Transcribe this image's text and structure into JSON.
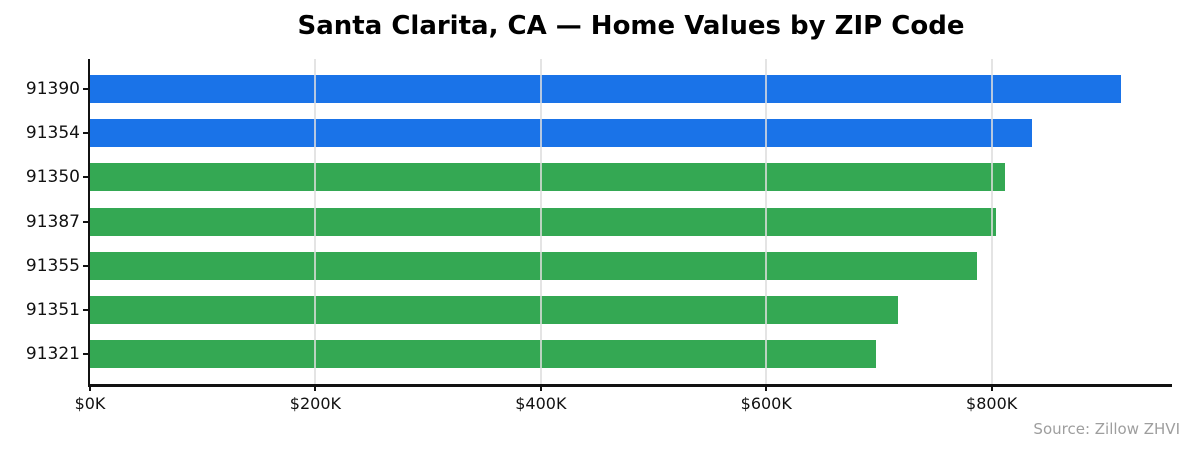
{
  "title": "Santa Clarita, CA — Home Values by ZIP Code",
  "source_note": "Source: Zillow ZHVI",
  "chart_data": {
    "type": "bar",
    "orientation": "horizontal",
    "title": "Santa Clarita, CA — Home Values by ZIP Code",
    "categories": [
      "91390",
      "91354",
      "91350",
      "91387",
      "91355",
      "91351",
      "91321"
    ],
    "values": [
      915,
      836,
      812,
      804,
      787,
      717,
      697
    ],
    "value_unit": "USD thousands",
    "bar_colors": [
      "#1a73e8",
      "#1a73e8",
      "#34a853",
      "#34a853",
      "#34a853",
      "#34a853",
      "#34a853"
    ],
    "xlabel": "",
    "ylabel": "",
    "xlim": [
      0,
      960
    ],
    "xticks": [
      0,
      200,
      400,
      600,
      800
    ],
    "xtick_labels": [
      "$0K",
      "$200K",
      "$400K",
      "$600K",
      "$800K"
    ],
    "grid": "vertical gridlines at x ticks, drawn over bars",
    "legend": "none",
    "source": "Source: Zillow ZHVI"
  },
  "colors": {
    "highlight_blue": "#1a73e8",
    "green": "#34a853",
    "axis": "#111111",
    "grid": "#dddddd",
    "title_text": "#000000",
    "tick_text": "#111111",
    "source_text": "#9e9e9e",
    "background": "#ffffff"
  }
}
